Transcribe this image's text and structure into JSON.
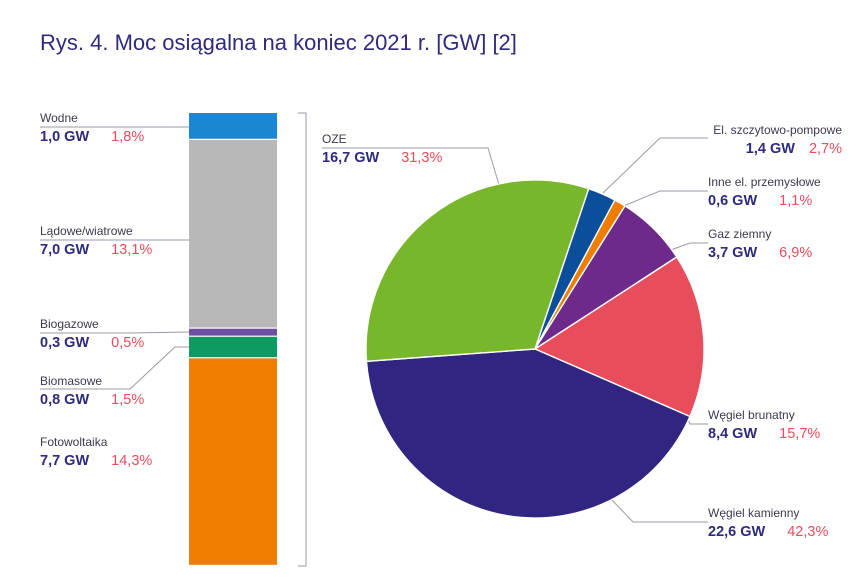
{
  "title": "Rys. 4. Moc osiągalna na koniec 2021 r. [GW] [2]",
  "chart_data": [
    {
      "type": "bar",
      "stacked": true,
      "orientation": "vertical",
      "group": "OZE",
      "total": 16.7,
      "series": [
        {
          "name": "Wodne",
          "gw": "1,0 GW",
          "pct": "1,8%",
          "value": 1.0,
          "color": "#1b86d3"
        },
        {
          "name": "Lądowe/wiatrowe",
          "gw": "7,0 GW",
          "pct": "13,1%",
          "value": 7.0,
          "color": "#b8b8b8"
        },
        {
          "name": "Biogazowe",
          "gw": "0,3 GW",
          "pct": "0,5%",
          "value": 0.3,
          "color": "#6c4fa1"
        },
        {
          "name": "Biomasowe",
          "gw": "0,8 GW",
          "pct": "1,5%",
          "value": 0.8,
          "color": "#0f9a63"
        },
        {
          "name": "Fotowoltaika",
          "gw": "7,7 GW",
          "pct": "14,3%",
          "value": 7.7,
          "color": "#ef7d00"
        }
      ]
    },
    {
      "type": "pie",
      "slices": [
        {
          "name": "OZE",
          "gw": "16,7 GW",
          "pct": "31,3%",
          "value": 31.3,
          "color": "#78b72b"
        },
        {
          "name": "El. szczytowo-pompowe",
          "gw": "1,4 GW",
          "pct": "2,7%",
          "value": 2.7,
          "color": "#0b4f9b"
        },
        {
          "name": "Inne el. przemysłowe",
          "gw": "0,6 GW",
          "pct": "1,1%",
          "value": 1.1,
          "color": "#ef7d00"
        },
        {
          "name": "Gaz ziemny",
          "gw": "3,7 GW",
          "pct": "6,9%",
          "value": 6.9,
          "color": "#6e2a8a"
        },
        {
          "name": "Węgiel brunatny",
          "gw": "8,4 GW",
          "pct": "15,7%",
          "value": 15.7,
          "color": "#e84d5b"
        },
        {
          "name": "Węgiel kamienny",
          "gw": "22,6 GW",
          "pct": "42,3%",
          "value": 42.3,
          "color": "#302580"
        }
      ]
    }
  ]
}
